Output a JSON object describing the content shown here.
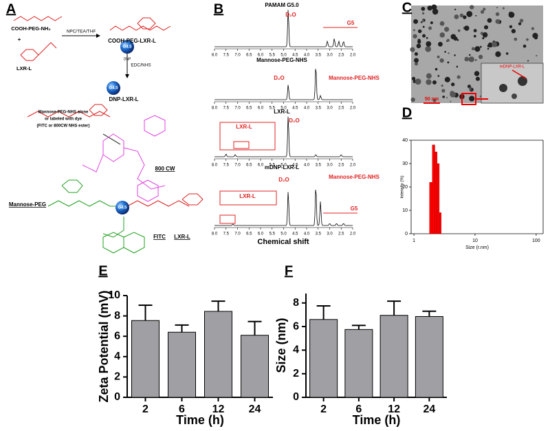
{
  "panel_labels": [
    "A",
    "B",
    "C",
    "D",
    "E",
    "F"
  ],
  "scheme": {
    "reactant_1": "COOH-PEG-NH₂",
    "plus": "+",
    "reactant_2": "LXR-L",
    "step_1": "NPC/TEA/THF",
    "product_1": "COOH-PEG-LXR-L",
    "step_2": "EDC/NHS",
    "dendrimer": "G4.5",
    "dendrimer_core": "DNP",
    "product_2": "DNP-LXR-L",
    "step_3": [
      "Mannose-PEG-NHS alone",
      "or labeled with dye",
      "(FITC or 800CW NHS ester)"
    ],
    "dye_1": "800 CW",
    "group_1": "Mannose-PEG",
    "dye_2": "FITC",
    "group_2": "LXR-L"
  },
  "nmr": {
    "spectra": [
      {
        "title": "PAMAM G5.0",
        "annotations": [
          "D₂O",
          "G5"
        ]
      },
      {
        "title": "Mannose-PEG-NHS",
        "annotations": [
          "D₂O",
          "Mannose-PEG-NHS"
        ]
      },
      {
        "title": "LXR-L",
        "annotations": [
          "LXR-L",
          "D₂O"
        ]
      },
      {
        "title": "mDNP-LXR-L",
        "annotations": [
          "D₂O",
          "Mannose-PEG-NHS",
          "LXR-L",
          "G5"
        ]
      }
    ],
    "xticks": [
      {
        "value": 8,
        "label": "8.0"
      },
      {
        "value": 7.5,
        "label": "7.5"
      },
      {
        "value": 7,
        "label": "7.0"
      },
      {
        "value": 6.5,
        "label": "6.5"
      },
      {
        "value": 6,
        "label": "6.0"
      },
      {
        "value": 5.5,
        "label": "5.5"
      },
      {
        "value": 5,
        "label": "5.0"
      },
      {
        "value": 4.5,
        "label": "4.5"
      },
      {
        "value": 4,
        "label": "4.0"
      },
      {
        "value": 3.5,
        "label": "3.5"
      },
      {
        "value": 3,
        "label": "3.0"
      },
      {
        "value": 2.5,
        "label": "2.5"
      },
      {
        "value": 2,
        "label": "2.0"
      }
    ],
    "xlabel": "Chemical shift"
  },
  "tem": {
    "scale_bar": "50 nm",
    "inset_label": "mDNP-LXR-L"
  },
  "chart_data": [
    {
      "type": "histogram",
      "ylabel": "Intensity (%)",
      "xlabel": "Size (r.nm)",
      "bins": [
        1.8,
        2.0,
        2.2,
        2.4,
        2.6,
        2.8
      ],
      "counts": [
        22,
        38,
        35,
        30,
        9
      ],
      "color": "#ff0000",
      "xlim": [
        0.9,
        130
      ],
      "xticks": [
        1,
        10,
        100
      ],
      "xscale": "log",
      "ylim": [
        0,
        40
      ],
      "yticks": [
        0,
        10,
        20,
        30,
        40
      ]
    },
    {
      "type": "bar",
      "ylabel": "Zeta Potential (mV)",
      "xlabel": "Time (h)",
      "categories": [
        "2",
        "6",
        "12",
        "24"
      ],
      "values": [
        7.55,
        6.4,
        8.45,
        6.1
      ],
      "errors": [
        1.5,
        0.7,
        1.0,
        1.35
      ],
      "color": "#a0a0a4",
      "ylim": [
        0,
        10
      ],
      "yticks": [
        0,
        2,
        4,
        6,
        8,
        10
      ]
    },
    {
      "type": "bar",
      "ylabel": "Size (nm)",
      "xlabel": "Time (h)",
      "categories": [
        "2",
        "6",
        "12",
        "24"
      ],
      "values": [
        6.6,
        5.75,
        6.95,
        6.85
      ],
      "errors": [
        1.15,
        0.35,
        1.2,
        0.45
      ],
      "color": "#a0a0a4",
      "ylim": [
        0,
        8.8
      ],
      "yticks": [
        0,
        2,
        4,
        6,
        8
      ]
    }
  ]
}
